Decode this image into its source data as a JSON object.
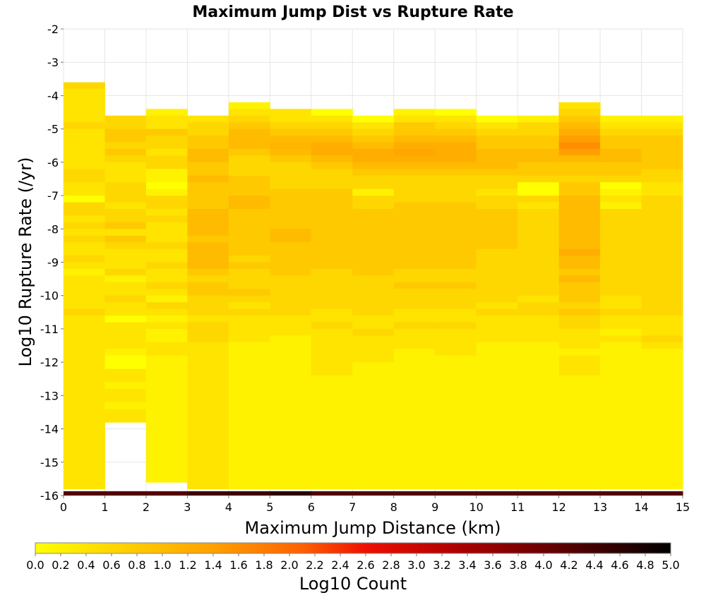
{
  "chart_data": {
    "type": "heatmap",
    "title": "Maximum Jump Dist vs Rupture Rate",
    "xlabel": "Maximum Jump Distance (km)",
    "ylabel": "Log10 Rupture Rate (/yr)",
    "xlim": [
      0,
      15
    ],
    "ylim": [
      -16,
      -2
    ],
    "x_ticks": [
      0,
      1,
      2,
      3,
      4,
      5,
      6,
      7,
      8,
      9,
      10,
      11,
      12,
      13,
      14,
      15
    ],
    "y_ticks": [
      -2,
      -3,
      -4,
      -5,
      -6,
      -7,
      -8,
      -9,
      -10,
      -11,
      -12,
      -13,
      -14,
      -15,
      -16
    ],
    "grid": true,
    "x_bin_width": 1,
    "y_bin_height": 0.2,
    "y_bins_top_to_bottom_start": -3.4,
    "colorbar": {
      "label": "Log10 Count",
      "range": [
        0,
        5
      ],
      "ticks": [
        "0.0",
        "0.2",
        "0.4",
        "0.6",
        "0.8",
        "1.0",
        "1.2",
        "1.4",
        "1.6",
        "1.8",
        "2.0",
        "2.2",
        "2.4",
        "2.6",
        "2.8",
        "3.0",
        "3.2",
        "3.4",
        "3.6",
        "3.8",
        "4.0",
        "4.2",
        "4.4",
        "4.6",
        "4.8",
        "5.0"
      ],
      "colors": [
        "#ffff00",
        "#ffd000",
        "#ffa000",
        "#ff6000",
        "#ee1000",
        "#b00000",
        "#600000",
        "#000000"
      ]
    },
    "column_tops_log_rate": [
      -3.6,
      -4.6,
      -4.4,
      -4.6,
      -4.2,
      -4.4,
      -4.4,
      -4.6,
      -4.4,
      -4.4,
      -4.6,
      -4.6,
      -4.2,
      -4.6,
      -4.6
    ],
    "values_log_count": [
      [
        0.6,
        0.4,
        0.4,
        0.4,
        0.4,
        0.4,
        0.6,
        0.4,
        0.4,
        0.4,
        0.4,
        0.4,
        0.4,
        0.6,
        0.6,
        0.4,
        0.4,
        0.0,
        0.6,
        0.6,
        0.4,
        0.6,
        0.4,
        0.6,
        0.4,
        0.4,
        0.6,
        0.4,
        0.2,
        0.4,
        0.4,
        0.4,
        0.4,
        0.4,
        0.6,
        0.4,
        0.4,
        0.4,
        0.4,
        0.4,
        0.4,
        0.4,
        0.4,
        0.4,
        0.4,
        0.4,
        0.4,
        0.4,
        0.4,
        0.4,
        0.4,
        0.4,
        0.4,
        0.4,
        0.4,
        0.4,
        0.4,
        0.4,
        0.4,
        0.4,
        0.4,
        0.4,
        0.4
      ],
      [
        0.6,
        0.6,
        0.8,
        0.8,
        0.6,
        0.8,
        0.6,
        0.4,
        0.4,
        0.4,
        0.6,
        0.6,
        0.6,
        0.4,
        0.6,
        0.6,
        0.8,
        0.4,
        0.8,
        0.6,
        0.4,
        0.4,
        0.4,
        0.6,
        0.2,
        0.4,
        0.4,
        0.6,
        0.4,
        0.4,
        0.0,
        0.4,
        0.4,
        0.4,
        0.4,
        0.2,
        0.0,
        0.0,
        0.4,
        0.4,
        0.2,
        0.4,
        0.4,
        0.2,
        0.4,
        0.4
      ],
      [
        0.2,
        0.4,
        0.4,
        0.8,
        0.6,
        0.6,
        0.4,
        0.6,
        0.6,
        0.2,
        0.2,
        0.0,
        0.2,
        0.6,
        0.6,
        0.4,
        0.6,
        0.4,
        0.4,
        0.4,
        0.6,
        0.4,
        0.4,
        0.6,
        0.4,
        0.4,
        0.6,
        0.4,
        0.2,
        0.6,
        0.4,
        0.2,
        0.4,
        0.2,
        0.2,
        0.4,
        0.4,
        0.2,
        0.2,
        0.2,
        0.2,
        0.2,
        0.2,
        0.2,
        0.2,
        0.2,
        0.2,
        0.2,
        0.2,
        0.2,
        0.2,
        0.2,
        0.2,
        0.2,
        0.2,
        0.2
      ],
      [
        0.4,
        0.6,
        0.6,
        0.8,
        0.8,
        1.0,
        1.0,
        0.8,
        0.8,
        1.0,
        0.8,
        0.8,
        0.8,
        0.8,
        1.0,
        1.0,
        1.0,
        1.0,
        0.8,
        1.0,
        1.0,
        1.0,
        1.0,
        0.8,
        0.6,
        0.8,
        0.8,
        0.6,
        0.6,
        0.6,
        0.4,
        0.6,
        0.6,
        0.6,
        0.4,
        0.4,
        0.4,
        0.4,
        0.4,
        0.4,
        0.4,
        0.4,
        0.4,
        0.4,
        0.4,
        0.4,
        0.4,
        0.4,
        0.4,
        0.4,
        0.4,
        0.4,
        0.4,
        0.4,
        0.4,
        0.4,
        0.4,
        0.4,
        0.4,
        0.4
      ],
      [
        0.2,
        0.4,
        0.6,
        0.8,
        1.0,
        1.0,
        1.0,
        0.8,
        0.6,
        0.6,
        0.6,
        0.8,
        0.8,
        0.8,
        1.0,
        1.0,
        0.8,
        0.8,
        0.8,
        0.8,
        0.8,
        0.8,
        0.8,
        0.6,
        0.8,
        0.6,
        0.6,
        0.6,
        0.8,
        0.6,
        0.4,
        0.6,
        0.4,
        0.4,
        0.4,
        0.4,
        0.2,
        0.2,
        0.2,
        0.2,
        0.2,
        0.2,
        0.2,
        0.2,
        0.2,
        0.2,
        0.2,
        0.2,
        0.2,
        0.2,
        0.2,
        0.2,
        0.2,
        0.2,
        0.2,
        0.2,
        0.2,
        0.2,
        0.2,
        0.2,
        0.2,
        0.2
      ],
      [
        0.4,
        0.4,
        0.6,
        0.8,
        1.0,
        1.1,
        1.0,
        0.8,
        0.6,
        0.6,
        0.6,
        0.6,
        0.8,
        0.8,
        0.8,
        0.8,
        0.8,
        0.8,
        1.0,
        1.0,
        0.8,
        0.8,
        0.8,
        0.8,
        0.8,
        0.6,
        0.6,
        0.6,
        0.6,
        0.6,
        0.6,
        0.4,
        0.4,
        0.4,
        0.2,
        0.2,
        0.2,
        0.2,
        0.2,
        0.2,
        0.2,
        0.2,
        0.2,
        0.2,
        0.2,
        0.2,
        0.2,
        0.2,
        0.2,
        0.2,
        0.2,
        0.2,
        0.2,
        0.2,
        0.2,
        0.2,
        0.2,
        0.2,
        0.2,
        0.2,
        0.2,
        0.2
      ],
      [
        0.0,
        0.4,
        0.6,
        0.8,
        1.0,
        1.2,
        1.2,
        1.0,
        0.8,
        0.6,
        0.6,
        0.6,
        0.8,
        0.8,
        0.8,
        0.8,
        0.8,
        0.8,
        0.8,
        0.8,
        0.8,
        0.8,
        0.8,
        0.8,
        0.6,
        0.6,
        0.6,
        0.6,
        0.6,
        0.6,
        0.4,
        0.4,
        0.6,
        0.4,
        0.4,
        0.4,
        0.4,
        0.4,
        0.4,
        0.4,
        0.2,
        0.2,
        0.2,
        0.2,
        0.2,
        0.2,
        0.2,
        0.2,
        0.2,
        0.2,
        0.2,
        0.2,
        0.2,
        0.2,
        0.2,
        0.2,
        0.2,
        0.2,
        0.2,
        0.2,
        0.2,
        0.2
      ],
      [
        0.0,
        0.4,
        0.6,
        0.8,
        1.0,
        1.2,
        1.2,
        1.0,
        0.8,
        0.6,
        0.6,
        0.2,
        0.6,
        0.6,
        0.8,
        0.8,
        0.8,
        0.8,
        0.8,
        0.8,
        0.8,
        0.8,
        0.8,
        0.8,
        0.6,
        0.6,
        0.6,
        0.6,
        0.6,
        0.6,
        0.4,
        0.4,
        0.6,
        0.4,
        0.4,
        0.4,
        0.4,
        0.2,
        0.2,
        0.2,
        0.2,
        0.2,
        0.2,
        0.2,
        0.2,
        0.2,
        0.2,
        0.2,
        0.2,
        0.2,
        0.2,
        0.2,
        0.2,
        0.2,
        0.2,
        0.2,
        0.2,
        0.2,
        0.2,
        0.2,
        0.2,
        0.2
      ],
      [
        0.2,
        0.4,
        0.8,
        0.8,
        1.0,
        1.2,
        1.3,
        1.2,
        1.0,
        0.8,
        0.6,
        0.6,
        0.6,
        0.6,
        0.8,
        0.8,
        0.8,
        0.8,
        0.8,
        0.8,
        0.8,
        0.8,
        0.8,
        0.8,
        0.6,
        0.6,
        0.8,
        0.6,
        0.6,
        0.6,
        0.4,
        0.4,
        0.6,
        0.4,
        0.4,
        0.4,
        0.2,
        0.2,
        0.2,
        0.2,
        0.2,
        0.2,
        0.2,
        0.2,
        0.2,
        0.2,
        0.2,
        0.2,
        0.2,
        0.2,
        0.2,
        0.2,
        0.2,
        0.2,
        0.2,
        0.2,
        0.2,
        0.2,
        0.2,
        0.2,
        0.2,
        0.2
      ],
      [
        0.0,
        0.4,
        0.6,
        0.8,
        1.0,
        1.2,
        1.2,
        1.2,
        1.0,
        0.8,
        0.6,
        0.6,
        0.6,
        0.6,
        0.8,
        0.8,
        0.8,
        0.8,
        0.8,
        0.8,
        0.8,
        0.8,
        0.8,
        0.8,
        0.6,
        0.6,
        0.8,
        0.6,
        0.6,
        0.6,
        0.4,
        0.4,
        0.6,
        0.4,
        0.4,
        0.4,
        0.4,
        0.2,
        0.2,
        0.2,
        0.2,
        0.2,
        0.2,
        0.2,
        0.2,
        0.2,
        0.2,
        0.2,
        0.2,
        0.2,
        0.2,
        0.2,
        0.2,
        0.2,
        0.2,
        0.2,
        0.2,
        0.2,
        0.2,
        0.2,
        0.2,
        0.2
      ],
      [
        0.0,
        0.4,
        0.6,
        0.8,
        0.8,
        1.0,
        1.0,
        1.0,
        0.8,
        0.6,
        0.6,
        0.4,
        0.6,
        0.6,
        0.8,
        0.8,
        0.8,
        0.8,
        0.8,
        0.8,
        0.6,
        0.6,
        0.6,
        0.6,
        0.6,
        0.6,
        0.6,
        0.6,
        0.4,
        0.6,
        0.4,
        0.4,
        0.4,
        0.4,
        0.2,
        0.2,
        0.2,
        0.2,
        0.2,
        0.2,
        0.2,
        0.2,
        0.2,
        0.2,
        0.2,
        0.2,
        0.2,
        0.2,
        0.2,
        0.2,
        0.2,
        0.2,
        0.2,
        0.2,
        0.2,
        0.2,
        0.2,
        0.2,
        0.2,
        0.2,
        0.2,
        0.2
      ],
      [
        0.2,
        0.6,
        0.6,
        0.8,
        0.8,
        1.0,
        1.0,
        0.8,
        0.8,
        0.6,
        0.0,
        0.0,
        0.6,
        0.4,
        0.6,
        0.6,
        0.6,
        0.6,
        0.6,
        0.6,
        0.6,
        0.6,
        0.6,
        0.6,
        0.6,
        0.6,
        0.6,
        0.4,
        0.6,
        0.6,
        0.4,
        0.4,
        0.4,
        0.4,
        0.2,
        0.2,
        0.2,
        0.2,
        0.2,
        0.2,
        0.2,
        0.2,
        0.2,
        0.2,
        0.2,
        0.2,
        0.2,
        0.2,
        0.2,
        0.2,
        0.2,
        0.2,
        0.2,
        0.2,
        0.2,
        0.2,
        0.2,
        0.2,
        0.2,
        0.2,
        0.2,
        0.2
      ],
      [
        0.4,
        0.6,
        0.8,
        1.0,
        1.2,
        1.4,
        1.6,
        1.4,
        1.0,
        0.8,
        0.8,
        0.6,
        0.8,
        0.8,
        1.0,
        1.0,
        1.0,
        1.0,
        1.0,
        1.0,
        1.0,
        1.0,
        1.2,
        1.0,
        1.0,
        0.8,
        1.0,
        0.8,
        0.8,
        0.8,
        0.6,
        0.8,
        0.6,
        0.6,
        0.4,
        0.4,
        0.4,
        0.2,
        0.4,
        0.4,
        0.4,
        0.2,
        0.2,
        0.2,
        0.2,
        0.2,
        0.2,
        0.2,
        0.2,
        0.2,
        0.2,
        0.2,
        0.2,
        0.2,
        0.2,
        0.2,
        0.2,
        0.2,
        0.2,
        0.2,
        0.2,
        0.2
      ],
      [
        0.2,
        0.4,
        0.6,
        0.8,
        0.8,
        1.0,
        1.0,
        0.8,
        0.8,
        0.6,
        0.0,
        0.2,
        0.4,
        0.2,
        0.6,
        0.6,
        0.6,
        0.6,
        0.6,
        0.6,
        0.6,
        0.6,
        0.6,
        0.6,
        0.6,
        0.6,
        0.6,
        0.4,
        0.4,
        0.6,
        0.4,
        0.4,
        0.2,
        0.4,
        0.2,
        0.2,
        0.2,
        0.2,
        0.2,
        0.2,
        0.2,
        0.2,
        0.2,
        0.2,
        0.2,
        0.2,
        0.2,
        0.2,
        0.2,
        0.2,
        0.2,
        0.2,
        0.2,
        0.2,
        0.2,
        0.2,
        0.2,
        0.2,
        0.2,
        0.2,
        0.2,
        0.2
      ],
      [
        0.2,
        0.4,
        0.6,
        0.8,
        0.8,
        0.8,
        0.8,
        0.8,
        0.6,
        0.6,
        0.4,
        0.4,
        0.6,
        0.6,
        0.6,
        0.6,
        0.6,
        0.6,
        0.6,
        0.6,
        0.6,
        0.6,
        0.6,
        0.6,
        0.6,
        0.6,
        0.6,
        0.6,
        0.6,
        0.6,
        0.4,
        0.4,
        0.4,
        0.6,
        0.4,
        0.2,
        0.2,
        0.2,
        0.2,
        0.2,
        0.2,
        0.2,
        0.2,
        0.2,
        0.2,
        0.2,
        0.2,
        0.2,
        0.2,
        0.2,
        0.2,
        0.2,
        0.2,
        0.2,
        0.2,
        0.2,
        0.2,
        0.2,
        0.2,
        0.2,
        0.2,
        0.2
      ]
    ],
    "bottom_row_log_rate": -16,
    "bottom_row_values_log_count": [
      4.2,
      4.2,
      4.2,
      4.4,
      4.4,
      4.6,
      4.2,
      4.2,
      4.2,
      4.2,
      4.2,
      4.2,
      4.2,
      4.2,
      4.2
    ]
  }
}
